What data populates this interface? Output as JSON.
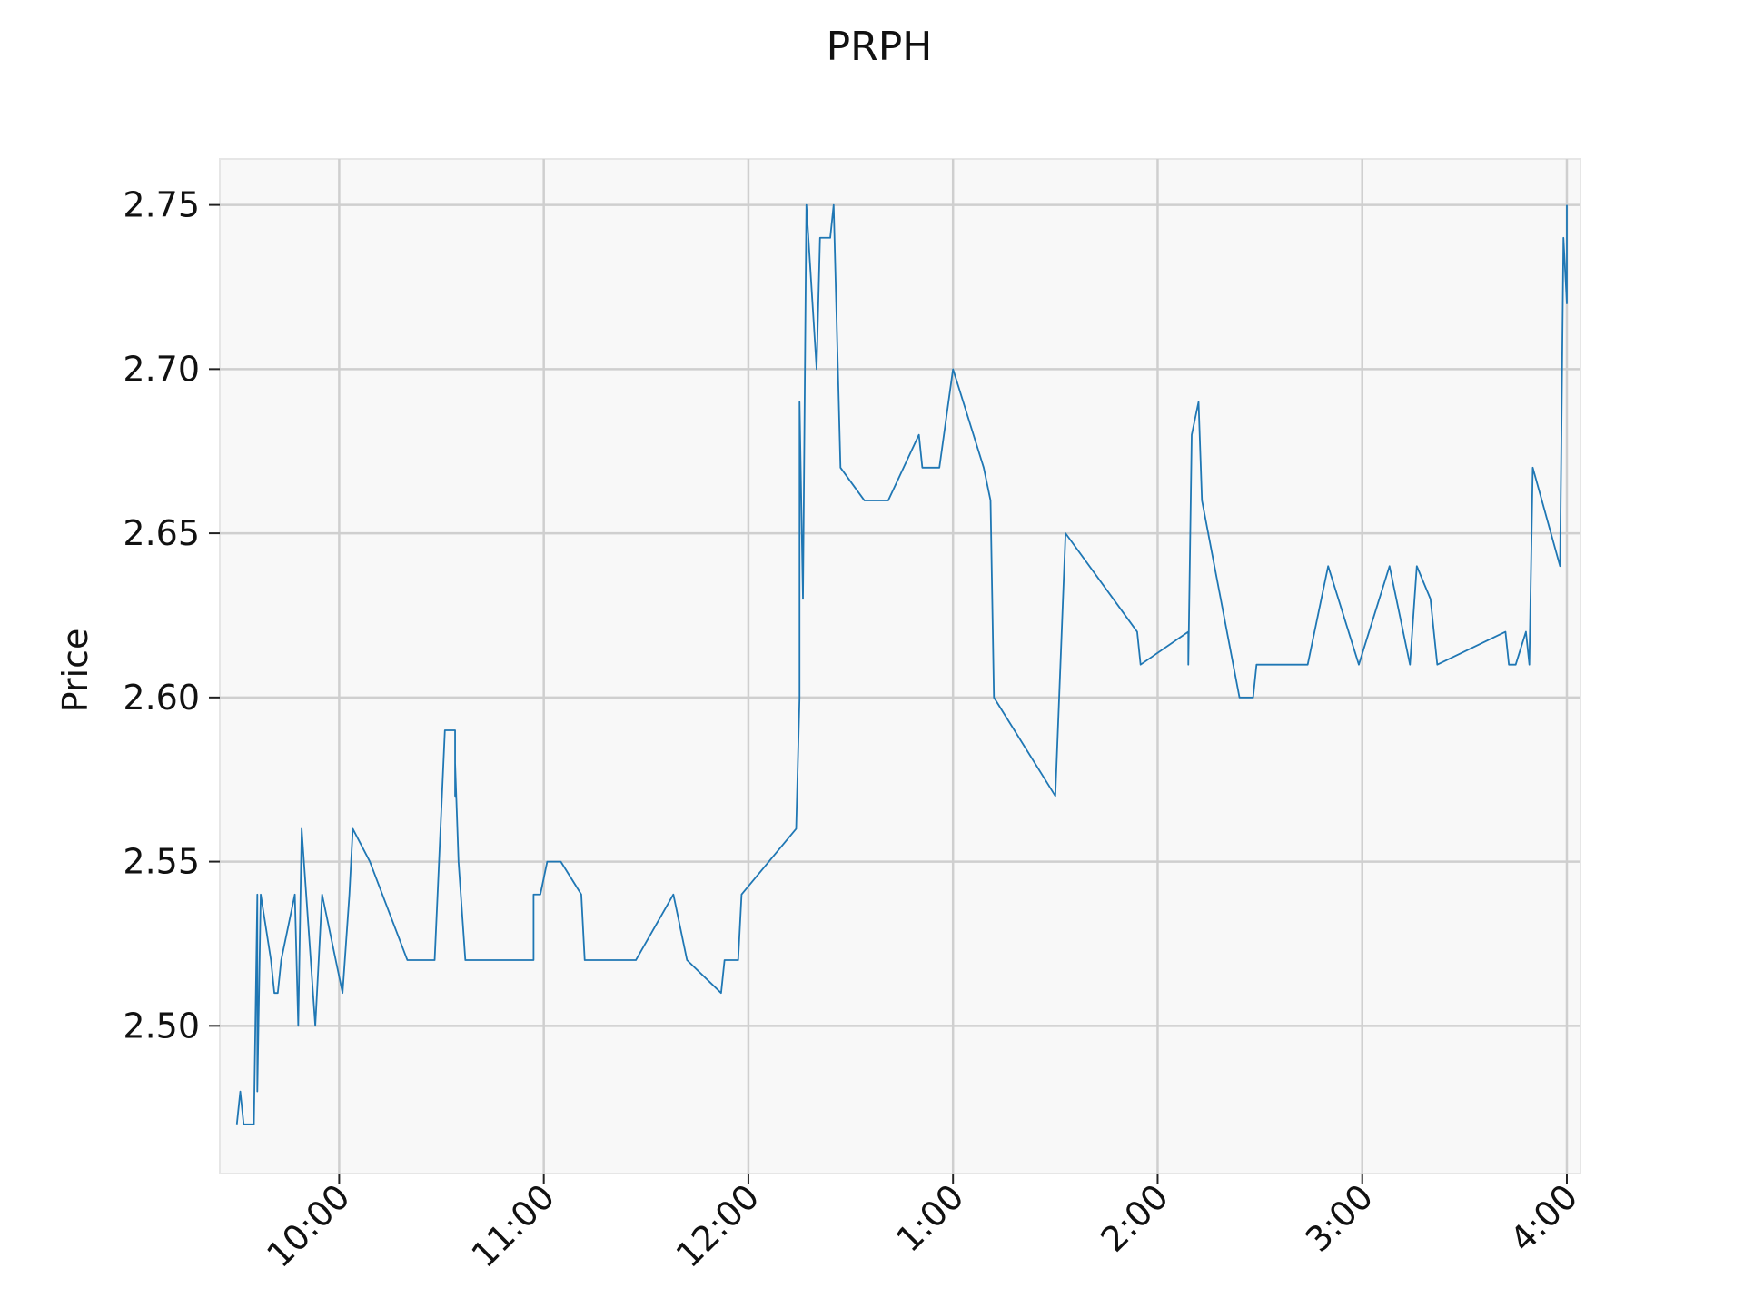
{
  "chart_data": {
    "type": "line",
    "title": "PRPH",
    "xlabel": "",
    "ylabel": "Price",
    "xlim": [
      "9:25",
      "16:04"
    ],
    "ylim": [
      2.455,
      2.764
    ],
    "grid": true,
    "legend": "none",
    "x_ticks": [
      {
        "time": "10:00",
        "label": "10:00"
      },
      {
        "time": "11:00",
        "label": "11:00"
      },
      {
        "time": "12:00",
        "label": "12:00"
      },
      {
        "time": "13:00",
        "label": "1:00"
      },
      {
        "time": "14:00",
        "label": "2:00"
      },
      {
        "time": "15:00",
        "label": "3:00"
      },
      {
        "time": "16:00",
        "label": "4:00"
      }
    ],
    "y_ticks": [
      {
        "value": 2.5,
        "label": "2.50"
      },
      {
        "value": 2.55,
        "label": "2.55"
      },
      {
        "value": 2.6,
        "label": "2.60"
      },
      {
        "value": 2.65,
        "label": "2.65"
      },
      {
        "value": 2.7,
        "label": "2.70"
      },
      {
        "value": 2.75,
        "label": "2.75"
      }
    ],
    "series": [
      {
        "color": "#1f77b4",
        "points": [
          [
            "9:30",
            2.47
          ],
          [
            "9:31",
            2.48
          ],
          [
            "9:32",
            2.47
          ],
          [
            "9:35",
            2.47
          ],
          [
            "9:36",
            2.54
          ],
          [
            "9:36",
            2.48
          ],
          [
            "9:37",
            2.54
          ],
          [
            "9:40",
            2.52
          ],
          [
            "9:41",
            2.51
          ],
          [
            "9:42",
            2.51
          ],
          [
            "9:43",
            2.52
          ],
          [
            "9:47",
            2.54
          ],
          [
            "9:48",
            2.5
          ],
          [
            "9:49",
            2.56
          ],
          [
            "9:53",
            2.5
          ],
          [
            "9:55",
            2.54
          ],
          [
            "10:01",
            2.51
          ],
          [
            "10:03",
            2.54
          ],
          [
            "10:04",
            2.56
          ],
          [
            "10:09",
            2.55
          ],
          [
            "10:20",
            2.52
          ],
          [
            "10:28",
            2.52
          ],
          [
            "10:31",
            2.59
          ],
          [
            "10:34",
            2.59
          ],
          [
            "10:34",
            2.57
          ],
          [
            "10:34",
            2.58
          ],
          [
            "10:35",
            2.55
          ],
          [
            "10:37",
            2.52
          ],
          [
            "10:57",
            2.52
          ],
          [
            "10:57",
            2.54
          ],
          [
            "10:59",
            2.54
          ],
          [
            "11:01",
            2.55
          ],
          [
            "11:05",
            2.55
          ],
          [
            "11:11",
            2.54
          ],
          [
            "11:12",
            2.52
          ],
          [
            "11:27",
            2.52
          ],
          [
            "11:38",
            2.54
          ],
          [
            "11:42",
            2.52
          ],
          [
            "11:52",
            2.51
          ],
          [
            "11:53",
            2.52
          ],
          [
            "11:57",
            2.52
          ],
          [
            "11:58",
            2.54
          ],
          [
            "12:14",
            2.56
          ],
          [
            "12:15",
            2.6
          ],
          [
            "12:15",
            2.69
          ],
          [
            "12:16",
            2.63
          ],
          [
            "12:17",
            2.75
          ],
          [
            "12:20",
            2.7
          ],
          [
            "12:21",
            2.74
          ],
          [
            "12:24",
            2.74
          ],
          [
            "12:25",
            2.75
          ],
          [
            "12:27",
            2.67
          ],
          [
            "12:34",
            2.66
          ],
          [
            "12:41",
            2.66
          ],
          [
            "12:50",
            2.68
          ],
          [
            "12:51",
            2.67
          ],
          [
            "12:56",
            2.67
          ],
          [
            "13:00",
            2.7
          ],
          [
            "13:09",
            2.67
          ],
          [
            "13:11",
            2.66
          ],
          [
            "13:12",
            2.6
          ],
          [
            "13:30",
            2.57
          ],
          [
            "13:33",
            2.65
          ],
          [
            "13:54",
            2.62
          ],
          [
            "13:55",
            2.61
          ],
          [
            "14:09",
            2.62
          ],
          [
            "14:09",
            2.61
          ],
          [
            "14:10",
            2.68
          ],
          [
            "14:12",
            2.69
          ],
          [
            "14:13",
            2.66
          ],
          [
            "14:24",
            2.6
          ],
          [
            "14:28",
            2.6
          ],
          [
            "14:29",
            2.61
          ],
          [
            "14:44",
            2.61
          ],
          [
            "14:50",
            2.64
          ],
          [
            "14:59",
            2.61
          ],
          [
            "15:08",
            2.64
          ],
          [
            "15:14",
            2.61
          ],
          [
            "15:16",
            2.64
          ],
          [
            "15:20",
            2.63
          ],
          [
            "15:22",
            2.61
          ],
          [
            "15:42",
            2.62
          ],
          [
            "15:43",
            2.61
          ],
          [
            "15:45",
            2.61
          ],
          [
            "15:48",
            2.62
          ],
          [
            "15:49",
            2.61
          ],
          [
            "15:50",
            2.67
          ],
          [
            "15:58",
            2.64
          ],
          [
            "15:59",
            2.74
          ],
          [
            "16:00",
            2.72
          ],
          [
            "16:00",
            2.75
          ]
        ]
      }
    ]
  }
}
